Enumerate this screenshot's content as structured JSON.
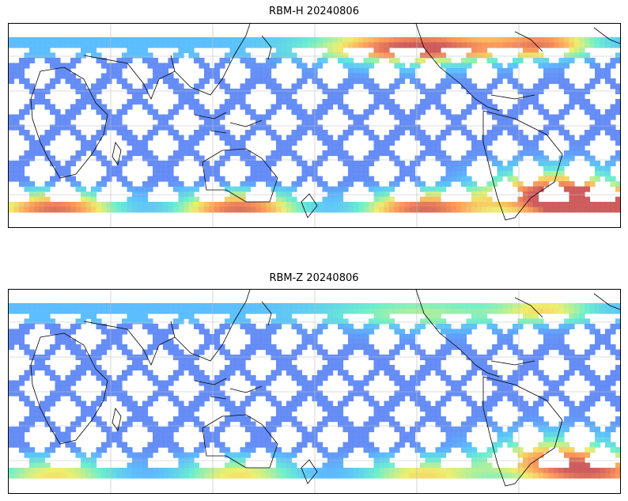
{
  "panels": [
    {
      "id": "top",
      "title": "RBM-H 20240806",
      "southern_ocean_intensity": 0.85,
      "south_atlantic_intensity": 0.9,
      "north_pacific_intensity": 0.85,
      "north_atlantic_intensity": 0.55
    },
    {
      "id": "bottom",
      "title": "RBM-Z 20240806",
      "southern_ocean_intensity": 0.55,
      "south_atlantic_intensity": 0.7,
      "north_pacific_intensity": 0.3,
      "north_atlantic_intensity": 0.4
    }
  ],
  "colors": {
    "low": "#6666ee",
    "mid": "#55bbff",
    "cyan": "#66eecc",
    "yellow": "#eeee66",
    "orange": "#ff9955",
    "high": "#cc5555",
    "grid": "#bbbbbb",
    "coast": "#000000"
  }
}
